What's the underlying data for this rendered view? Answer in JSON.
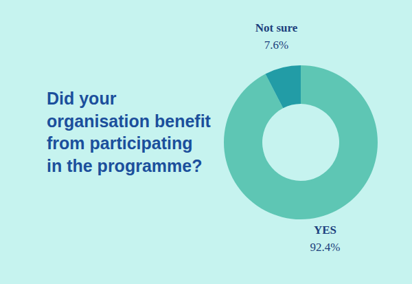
{
  "chart_data": {
    "type": "pie",
    "title": "Did your organisation benefit from participating in the programme?",
    "categories": [
      "YES",
      "Not sure"
    ],
    "values": [
      92.4,
      7.6
    ],
    "value_labels": [
      "92.4%",
      "7.6%"
    ],
    "colors": [
      "#5ec6b4",
      "#229ca6"
    ],
    "data_labels": true
  }
}
